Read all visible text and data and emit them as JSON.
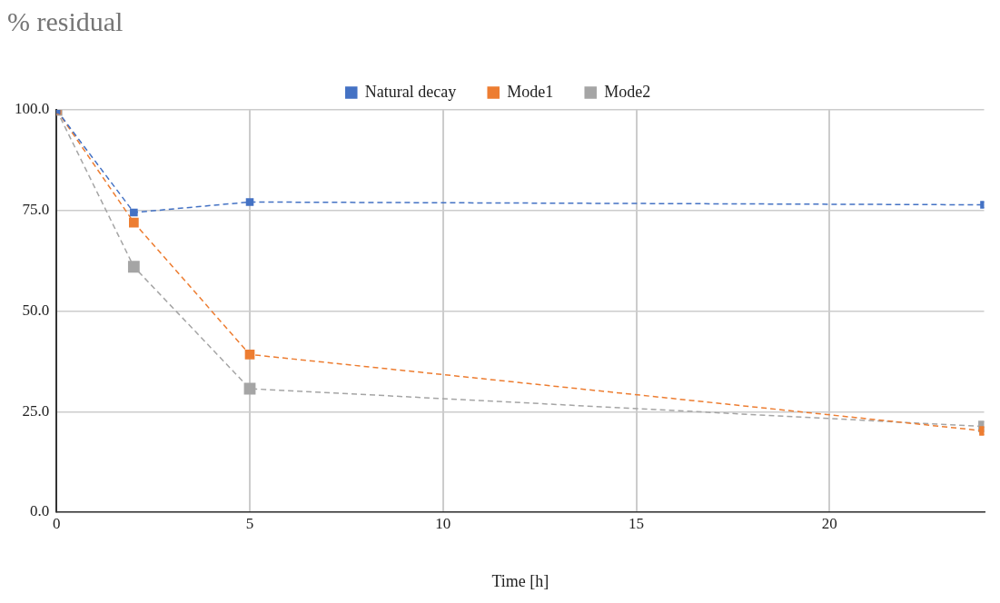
{
  "chart_data": {
    "type": "line",
    "title": "% residual",
    "xlabel": "Time [h]",
    "series": [
      {
        "name": "Natural decay",
        "color": "#4472c4",
        "x": [
          0,
          2,
          5,
          24
        ],
        "values": [
          100,
          74.5,
          77.1,
          76.4
        ]
      },
      {
        "name": "Mode1",
        "color": "#ed7d31",
        "x": [
          0,
          2,
          5,
          24
        ],
        "values": [
          100,
          72.0,
          39.2,
          20.2
        ]
      },
      {
        "name": "Mode2",
        "color": "#a5a5a5",
        "x": [
          0,
          2,
          5,
          24
        ],
        "values": [
          100,
          61.0,
          30.7,
          21.3
        ]
      }
    ],
    "xlim": [
      0,
      24
    ],
    "xticks": [
      0,
      5,
      10,
      15,
      20
    ],
    "ylim": [
      0,
      100
    ],
    "yticks": [
      {
        "value": 0,
        "label": "0.0"
      },
      {
        "value": 25,
        "label": "25.0"
      },
      {
        "value": 50,
        "label": "50.0"
      },
      {
        "value": 75,
        "label": "75.0"
      },
      {
        "value": 100,
        "label": "100.0"
      }
    ],
    "grid": true,
    "legend": "top",
    "marker": "square",
    "line_style": "dashed"
  }
}
